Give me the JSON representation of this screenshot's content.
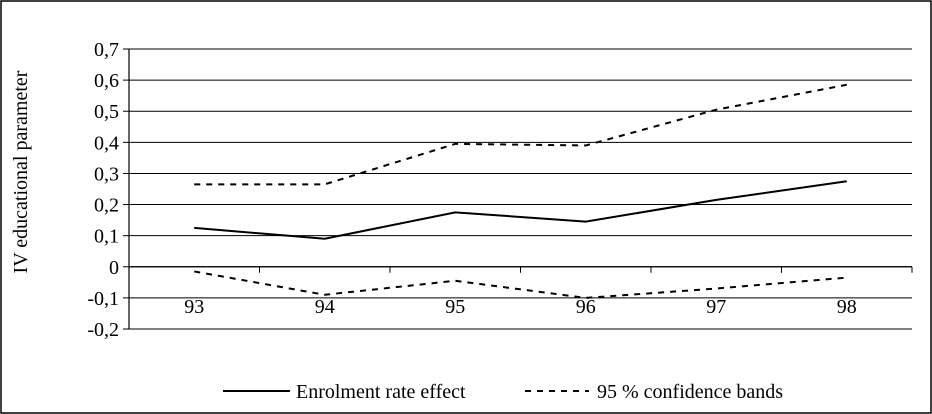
{
  "chart_data": {
    "type": "line",
    "ylabel": "IV educational parameter",
    "xlabel": "",
    "categories": [
      "93",
      "94",
      "95",
      "96",
      "97",
      "98"
    ],
    "y_ticks": [
      "0,7",
      "0,6",
      "0,5",
      "0,4",
      "0,3",
      "0,2",
      "0,1",
      "0",
      "-0,1",
      "-0,2"
    ],
    "ylim": [
      -0.2,
      0.7
    ],
    "grid": true,
    "legend_position": "bottom",
    "series": [
      {
        "name": "Enrolment rate effect",
        "style": "solid",
        "color": "#000000",
        "values": [
          0.125,
          0.09,
          0.175,
          0.145,
          0.215,
          0.275
        ]
      },
      {
        "name": "95 % confidence bands",
        "style": "dashed",
        "color": "#000000",
        "values": [
          0.265,
          0.265,
          0.395,
          0.39,
          0.505,
          0.585
        ]
      },
      {
        "name": "",
        "style": "dashed",
        "color": "#000000",
        "values": [
          -0.015,
          -0.09,
          -0.045,
          -0.1,
          -0.07,
          -0.035
        ]
      }
    ],
    "legend": [
      {
        "label": "Enrolment rate effect",
        "style": "solid"
      },
      {
        "label": "95 % confidence bands",
        "style": "dashed"
      }
    ]
  }
}
